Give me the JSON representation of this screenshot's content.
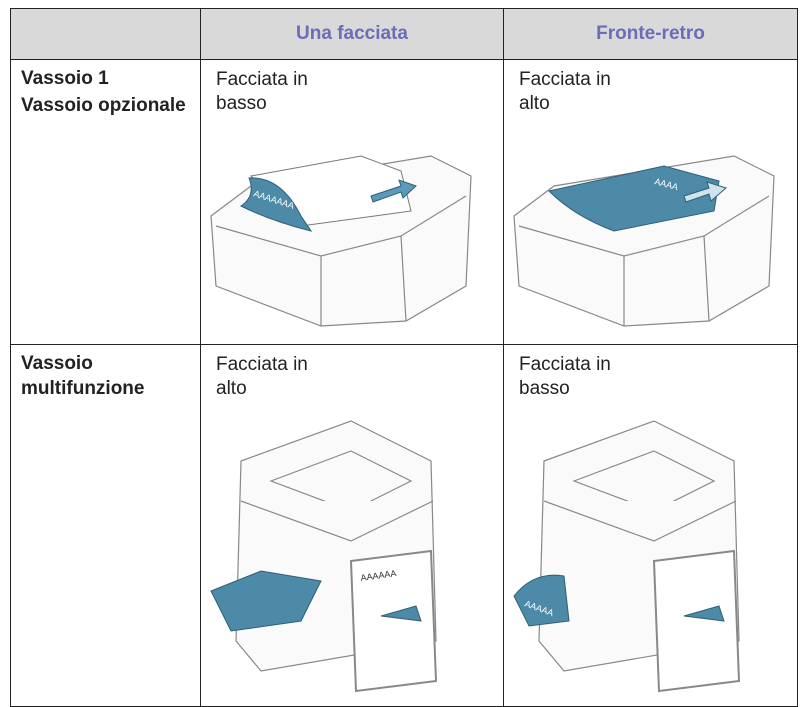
{
  "table": {
    "columns": [
      "Una facciata",
      "Fronte-retro"
    ],
    "rows": [
      {
        "labels": [
          "Vassoio 1",
          "Vassoio opzionale"
        ],
        "cells": [
          "Facciata in basso",
          "Facciata in alto"
        ],
        "marks": [
          "AAAAAAA",
          "AAAA"
        ]
      },
      {
        "labels": [
          "Vassoio multifunzione"
        ],
        "cells": [
          "Facciata in alto",
          "Facciata in basso"
        ],
        "marks": [
          "AAAAAA",
          "AAAAA"
        ]
      }
    ]
  }
}
